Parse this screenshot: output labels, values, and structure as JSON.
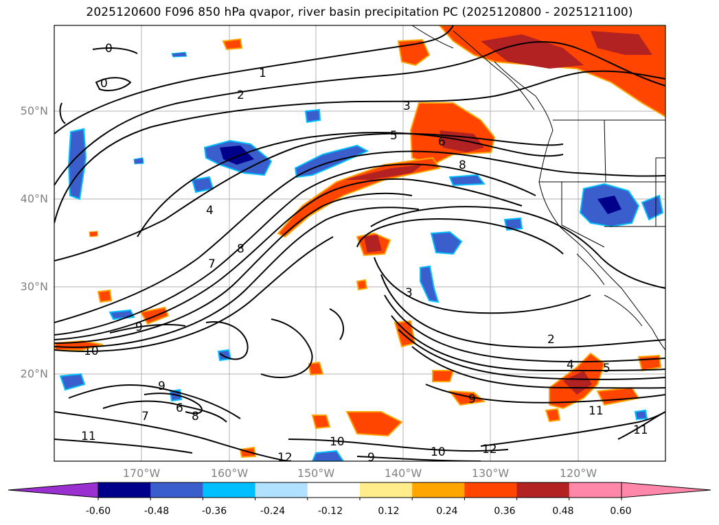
{
  "title": "2025120600 F096 850 hPa qvapor, river basin precipitation PC (2025120800 - 2025121100)",
  "lat_labels": [
    "50°N",
    "40°N",
    "30°N",
    "20°N"
  ],
  "lon_labels": [
    "170°W",
    "160°W",
    "150°W",
    "140°W",
    "130°W",
    "120°W"
  ],
  "contour_labels": [
    "0",
    "0",
    "1",
    "2",
    "3",
    "5",
    "6",
    "8",
    "4",
    "7",
    "8",
    "9",
    "10",
    "3",
    "2",
    "4",
    "5",
    "9",
    "11",
    "11",
    "12",
    "10",
    "9",
    "12",
    "9",
    "7",
    "6",
    "8",
    "11",
    "10"
  ],
  "colorbar": {
    "ticks": [
      "-0.60",
      "-0.48",
      "-0.36",
      "-0.24",
      "-0.12",
      "0.12",
      "0.24",
      "0.36",
      "0.48",
      "0.60"
    ],
    "colors": {
      "under": "#9b30d0",
      "bins": [
        "#00008b",
        "#3a5fcd",
        "#00bfff",
        "#b0e2ff",
        "#ffffff",
        "#ffec8b",
        "#ffa500",
        "#ff4500",
        "#b22222",
        "#ff88aa"
      ]
    }
  }
}
